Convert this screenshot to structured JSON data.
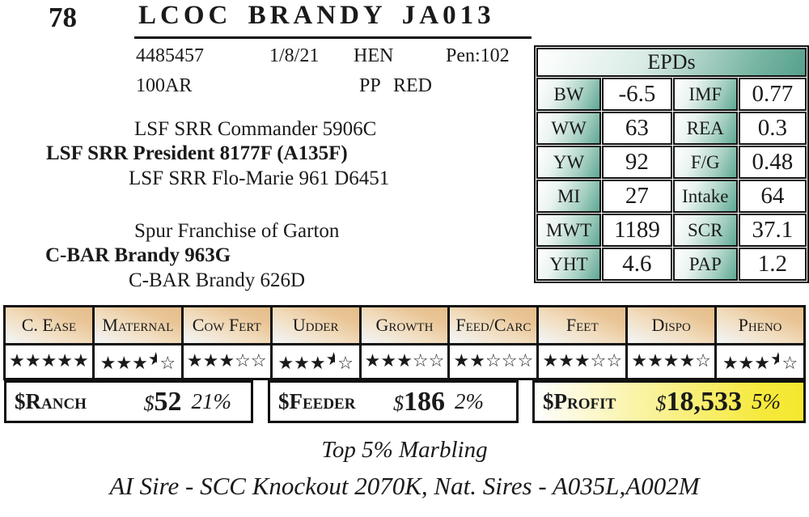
{
  "lot": {
    "number": "78",
    "name": "LCOC BRANDY JA013"
  },
  "info": {
    "registration": "4485457",
    "birth_date": "1/8/21",
    "sex": "HEN",
    "pen": "Pen:102",
    "breed": "100AR",
    "polled": "PP",
    "color": "RED"
  },
  "pedigree": {
    "sire_sire": "LSF SRR Commander 5906C",
    "sire": "LSF SRR President 8177F (A135F)",
    "sire_dam": "LSF SRR Flo-Marie 961 D6451",
    "dam_sire": "Spur Franchise of Garton",
    "dam": "C-BAR Brandy 963G",
    "dam_dam": "C-BAR Brandy 626D"
  },
  "epds": {
    "title": "EPDs",
    "rows": [
      {
        "l1": "BW",
        "v1": "-6.5",
        "l2": "IMF",
        "v2": "0.77"
      },
      {
        "l1": "WW",
        "v1": "63",
        "l2": "REA",
        "v2": "0.3"
      },
      {
        "l1": "YW",
        "v1": "92",
        "l2": "F/G",
        "v2": "0.48"
      },
      {
        "l1": "MI",
        "v1": "27",
        "l2": "Intake",
        "v2": "64"
      },
      {
        "l1": "MWT",
        "v1": "1189",
        "l2": "SCR",
        "v2": "37.1"
      },
      {
        "l1": "YHT",
        "v1": "4.6",
        "l2": "PAP",
        "v2": "1.2"
      }
    ]
  },
  "ratings": {
    "columns": [
      {
        "label": "C. Ease",
        "rating": {
          "full": 5,
          "half": false,
          "empty": 0
        }
      },
      {
        "label": "Maternal",
        "rating": {
          "full": 3,
          "half": true,
          "empty": 1
        }
      },
      {
        "label": "Cow Fert",
        "rating": {
          "full": 3,
          "half": false,
          "empty": 2
        }
      },
      {
        "label": "Udder",
        "rating": {
          "full": 3,
          "half": true,
          "empty": 1
        }
      },
      {
        "label": "Growth",
        "rating": {
          "full": 3,
          "half": false,
          "empty": 2
        }
      },
      {
        "label": "Feed/Carc",
        "rating": {
          "full": 2,
          "half": false,
          "empty": 3
        }
      },
      {
        "label": "Feet",
        "rating": {
          "full": 3,
          "half": false,
          "empty": 2
        }
      },
      {
        "label": "Dispo",
        "rating": {
          "full": 4,
          "half": false,
          "empty": 1
        }
      },
      {
        "label": "Pheno",
        "rating": {
          "full": 3,
          "half": true,
          "empty": 1
        }
      }
    ]
  },
  "values": {
    "ranch": {
      "label": "$Ranch",
      "currency": "$",
      "amount": "52",
      "pct": "21%"
    },
    "feeder": {
      "label": "$Feeder",
      "currency": "$",
      "amount": "186",
      "pct": "2%"
    },
    "profit": {
      "label": "$Profit",
      "currency": "$",
      "amount": "18,533",
      "pct": "5%"
    }
  },
  "footnotes": {
    "line1": "Top 5% Marbling",
    "line2": "AI Sire - SCC Knockout 2070K, Nat. Sires - A035L,A002M"
  },
  "colors": {
    "epd_teal": "#5ea794",
    "header_tan": "#e5bd89",
    "profit_yellow": "#f6e93b",
    "border": "#111111"
  }
}
